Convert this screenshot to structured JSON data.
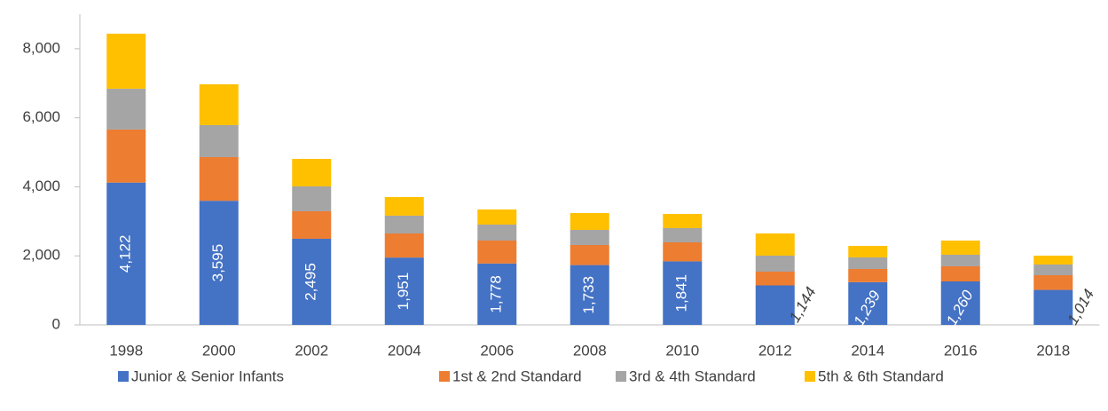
{
  "chart_data": {
    "type": "stacked_bar",
    "categories": [
      "1998",
      "2000",
      "2002",
      "2004",
      "2006",
      "2008",
      "2010",
      "2012",
      "2014",
      "2016",
      "2018"
    ],
    "series": [
      {
        "name": "Junior & Senior Infants",
        "color": "#4472c4",
        "values": [
          4122,
          3595,
          2495,
          1951,
          1778,
          1733,
          1841,
          1144,
          1239,
          1260,
          1014
        ],
        "value_labels": [
          "4,122",
          "3,595",
          "2,495",
          "1,951",
          "1,778",
          "1,733",
          "1,841",
          "1,144",
          "1,239",
          "1,260",
          "1,014"
        ]
      },
      {
        "name": "1st & 2nd Standard",
        "color": "#ed7d31",
        "values": [
          1537,
          1266,
          797,
          698,
          665,
          582,
          551,
          399,
          381,
          438,
          426
        ]
      },
      {
        "name": "3rd & 4th Standard",
        "color": "#a5a5a5",
        "values": [
          1183,
          926,
          720,
          515,
          463,
          437,
          411,
          463,
          335,
          334,
          309
        ]
      },
      {
        "name": "5th & 6th Standard",
        "color": "#ffc000",
        "values": [
          1594,
          1183,
          798,
          540,
          438,
          489,
          412,
          643,
          334,
          411,
          257
        ]
      }
    ],
    "ylim": [
      0,
      9000
    ],
    "yticks": [
      0,
      {
        "value": 2000,
        "label": "2,000"
      },
      {
        "value": 4000,
        "label": "4,000"
      },
      {
        "value": 6000,
        "label": "6,000"
      },
      {
        "value": 8000,
        "label": "8,000"
      }
    ],
    "legend": "bottom"
  }
}
